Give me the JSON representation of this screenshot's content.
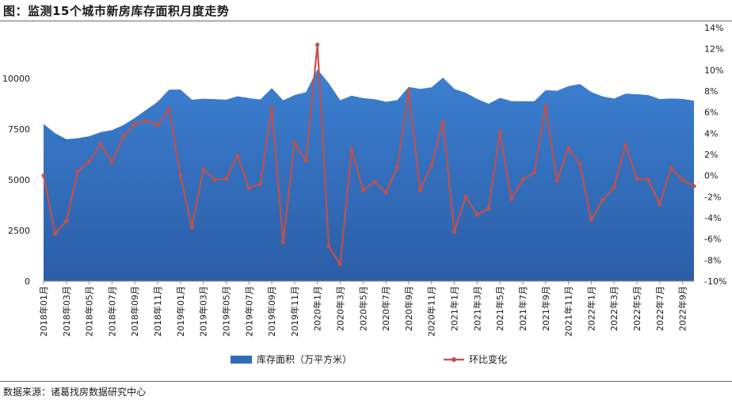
{
  "page_title": "图：监测15个城市新房库存面积月度走势",
  "source": "数据来源：诸葛找房数据研究中心",
  "colors": {
    "area": "#2f6bba",
    "area_top": "#3b7fd0",
    "line": "#c0504d",
    "axis_text": "#1a1a1a"
  },
  "chart_data": {
    "type": "area+line",
    "x_tick_labels": [
      "2018年01月",
      "2018年03月",
      "2018年05月",
      "2018年07月",
      "2018年09月",
      "2018年11月",
      "2019年01月",
      "2019年03月",
      "2019年05月",
      "2019年07月",
      "2019年09月",
      "2019年11月",
      "2020年1月",
      "2020年3月",
      "2020年5月",
      "2020年7月",
      "2020年9月",
      "2020年11月",
      "2021年1月",
      "2021年3月",
      "2021年5月",
      "2021年7月",
      "2021年9月",
      "2021年11月",
      "2022年1月",
      "2022年3月",
      "2022年5月",
      "2022年7月",
      "2022年9月"
    ],
    "y_left_ticks": [
      "0",
      "2500",
      "5000",
      "7500",
      "10000"
    ],
    "y_left_range": [
      0,
      12500
    ],
    "y_right_ticks": [
      "-10%",
      "-8%",
      "-6%",
      "-4%",
      "-2%",
      "0%",
      "2%",
      "4%",
      "6%",
      "8%",
      "10%",
      "12%",
      "14%"
    ],
    "y_right_range": [
      -10,
      14
    ],
    "legend_position": "bottom",
    "series": [
      {
        "name": "库存面积（万平方米）",
        "type": "area",
        "axis": "left",
        "values": [
          7750,
          7300,
          7000,
          7050,
          7150,
          7350,
          7450,
          7700,
          8050,
          8450,
          8850,
          9450,
          9450,
          8950,
          9000,
          8980,
          8950,
          9120,
          9030,
          8960,
          9520,
          8920,
          9180,
          9320,
          10450,
          9760,
          8920,
          9150,
          9030,
          8980,
          8850,
          8930,
          9580,
          9480,
          9560,
          10040,
          9480,
          9290,
          8990,
          8750,
          9040,
          8880,
          8870,
          8870,
          9420,
          9390,
          9620,
          9720,
          9330,
          9110,
          9010,
          9250,
          9220,
          9180,
          8980,
          9010,
          8990,
          8900
        ]
      },
      {
        "name": "环比变化",
        "type": "line",
        "axis": "right",
        "values": [
          0.0,
          -5.5,
          -4.3,
          0.4,
          1.3,
          3.0,
          1.3,
          3.7,
          4.9,
          5.2,
          4.8,
          6.3,
          0.0,
          -4.9,
          0.6,
          -0.4,
          -0.3,
          1.9,
          -1.2,
          -0.8,
          6.4,
          -6.3,
          3.1,
          1.4,
          12.4,
          -6.7,
          -8.4,
          2.5,
          -1.4,
          -0.6,
          -1.6,
          0.8,
          8.0,
          -1.4,
          1.0,
          5.1,
          -5.3,
          -2.0,
          -3.7,
          -3.1,
          4.1,
          -2.2,
          -0.4,
          0.3,
          6.6,
          -0.5,
          2.6,
          1.1,
          -4.2,
          -2.3,
          -1.1,
          2.9,
          -0.3,
          -0.4,
          -2.7,
          0.7,
          -0.4,
          -1.0
        ]
      }
    ]
  }
}
